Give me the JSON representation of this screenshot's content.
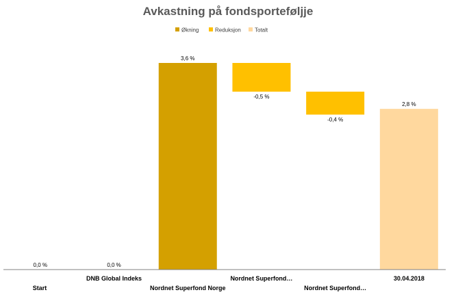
{
  "chart_data": {
    "type": "waterfall",
    "title": "Avkastning på fondsporteføljje",
    "legend": {
      "placement": "top-center",
      "items": [
        {
          "key": "increase",
          "label": "Økning",
          "color": "#D4A000"
        },
        {
          "key": "decrease",
          "label": "Reduksjon",
          "color": "#FFC000"
        },
        {
          "key": "total",
          "label": "Totalt",
          "color": "#FFD89E"
        }
      ]
    },
    "categories": [
      "Start",
      "DNB Global Indeks",
      "Nordnet Superfond Norge",
      "Nordnet Superfond…",
      "Nordnet Superfond…",
      "30.04.2018"
    ],
    "bars": [
      {
        "category": "Start",
        "kind": "total",
        "value": 0.0,
        "label": "0,0 %"
      },
      {
        "category": "DNB Global Indeks",
        "kind": "increase",
        "value": 0.0,
        "label": "0,0 %"
      },
      {
        "category": "Nordnet Superfond Norge",
        "kind": "increase",
        "value": 3.6,
        "label": "3,6 %"
      },
      {
        "category": "Nordnet Superfond…",
        "kind": "decrease",
        "value": -0.5,
        "label": "-0,5 %"
      },
      {
        "category": "Nordnet Superfond…",
        "kind": "decrease",
        "value": -0.4,
        "label": "-0,4 %"
      },
      {
        "category": "30.04.2018",
        "kind": "total",
        "value": 2.8,
        "label": "2,8 %"
      }
    ],
    "unit": "%",
    "ylim": [
      0,
      3.6
    ],
    "grid": false,
    "xlabel": "",
    "ylabel": ""
  }
}
